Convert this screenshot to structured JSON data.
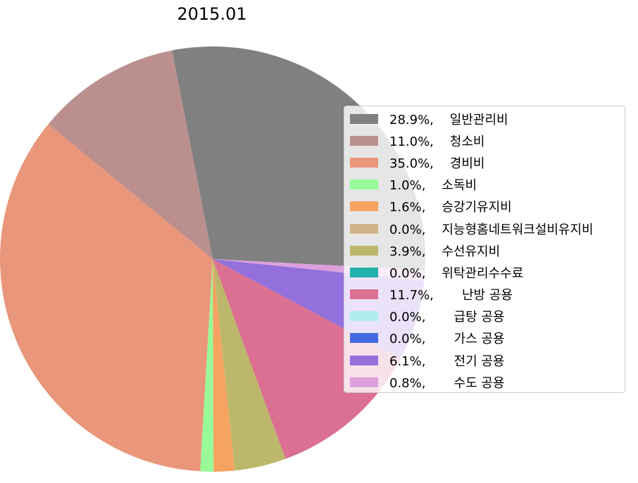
{
  "chart_data": {
    "type": "pie",
    "title": "2015.01",
    "slices": [
      {
        "label": "일반관리비",
        "percent": 28.9,
        "legend": "28.9%,    일반관리비",
        "color": "#808080"
      },
      {
        "label": "청소비",
        "percent": 11.0,
        "legend": "11.0%,    청소비",
        "color": "#bc8f8f"
      },
      {
        "label": "경비비",
        "percent": 35.0,
        "legend": "35.0%,    경비비",
        "color": "#e9967a"
      },
      {
        "label": "소독비",
        "percent": 1.0,
        "legend": "1.0%,    소독비",
        "color": "#98fb98"
      },
      {
        "label": "승강기유지비",
        "percent": 1.6,
        "legend": "1.6%,    승강기유지비",
        "color": "#f4a460"
      },
      {
        "label": "지능형홈네트워크설비유지비",
        "percent": 0.0,
        "legend": "0.0%,    지능형홈네트워크설비유지비",
        "color": "#d2b48c"
      },
      {
        "label": "수선유지비",
        "percent": 3.9,
        "legend": "3.9%,    수선유지비",
        "color": "#bdb76b"
      },
      {
        "label": "위탁관리수수료",
        "percent": 0.0,
        "legend": "0.0%,    위탁관리수수료",
        "color": "#20b2aa"
      },
      {
        "label": "난방 공용",
        "percent": 11.7,
        "legend": "11.7%,       난방 공용",
        "color": "#db7093"
      },
      {
        "label": "급탕 공용",
        "percent": 0.0,
        "legend": "0.0%,       급탕 공용",
        "color": "#afeeee"
      },
      {
        "label": "가스 공용",
        "percent": 0.0,
        "legend": "0.0%,       가스 공용",
        "color": "#4169e1"
      },
      {
        "label": "전기 공용",
        "percent": 6.1,
        "legend": "6.1%,       전기 공용",
        "color": "#9370db"
      },
      {
        "label": "수도 공용",
        "percent": 0.8,
        "legend": "0.8%,       수도 공용",
        "color": "#dda0dd"
      }
    ],
    "legend_placement": "right"
  }
}
